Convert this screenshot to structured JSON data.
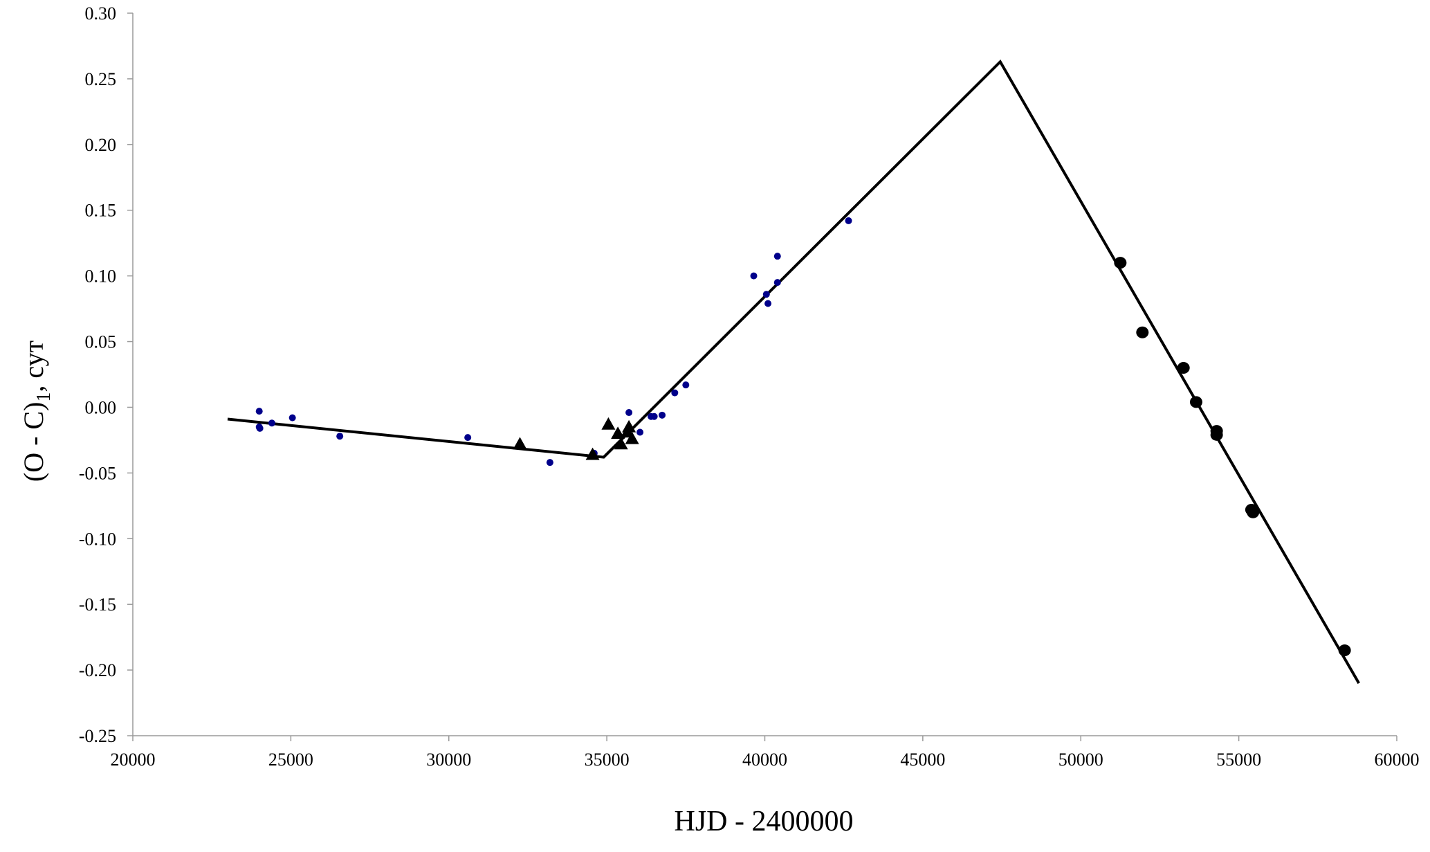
{
  "chart_data": {
    "type": "scatter",
    "title": "",
    "xlabel": "HJD - 2400000",
    "ylabel": "(O - C)",
    "ylabel_sub": "1",
    "ylabel_suffix": ", сут",
    "xlim": [
      20000,
      60000
    ],
    "ylim": [
      -0.25,
      0.3
    ],
    "xticks": [
      20000,
      25000,
      30000,
      35000,
      40000,
      45000,
      50000,
      55000,
      60000
    ],
    "yticks": [
      -0.25,
      -0.2,
      -0.15,
      -0.1,
      -0.05,
      0.0,
      0.05,
      0.1,
      0.15,
      0.2,
      0.25,
      0.3
    ],
    "ytick_labels": [
      "-0.25",
      "-0.20",
      "-0.15",
      "-0.10",
      "-0.05",
      "0.00",
      "0.05",
      "0.10",
      "0.15",
      "0.20",
      "0.25",
      "0.30"
    ],
    "xtick_labels": [
      "20000",
      "25000",
      "30000",
      "35000",
      "40000",
      "45000",
      "50000",
      "55000",
      "60000"
    ],
    "grid": false,
    "legend": "none",
    "series": [
      {
        "marker": "small-dot",
        "color": "#00008B",
        "x": [
          24000,
          24000,
          24020,
          24400,
          25050,
          26550,
          30600,
          33200,
          34600,
          35700,
          36050,
          36400,
          36500,
          36750,
          37150,
          37500,
          39650,
          40050,
          40100,
          40400,
          40400,
          42650
        ],
        "y": [
          -0.003,
          -0.015,
          -0.016,
          -0.012,
          -0.008,
          -0.022,
          -0.023,
          -0.042,
          -0.035,
          -0.004,
          -0.019,
          -0.007,
          -0.007,
          -0.006,
          0.011,
          0.017,
          0.1,
          0.086,
          0.079,
          0.095,
          0.115,
          0.142
        ]
      },
      {
        "marker": "triangle",
        "color": "#000000",
        "x": [
          32250,
          34550,
          35050,
          35350,
          35450,
          35650,
          35700,
          35800
        ],
        "y": [
          -0.028,
          -0.036,
          -0.013,
          -0.02,
          -0.028,
          -0.019,
          -0.015,
          -0.024
        ]
      },
      {
        "marker": "large-dot",
        "color": "#000000",
        "x": [
          51250,
          51950,
          53250,
          53650,
          54300,
          54300,
          55400,
          55450,
          58350
        ],
        "y": [
          0.11,
          0.057,
          0.03,
          0.004,
          -0.018,
          -0.021,
          -0.078,
          -0.08,
          -0.185
        ]
      },
      {
        "marker": "line",
        "color": "#000000",
        "x": [
          23000,
          34900,
          47450,
          58800
        ],
        "y": [
          -0.009,
          -0.038,
          0.263,
          -0.21
        ]
      }
    ]
  }
}
